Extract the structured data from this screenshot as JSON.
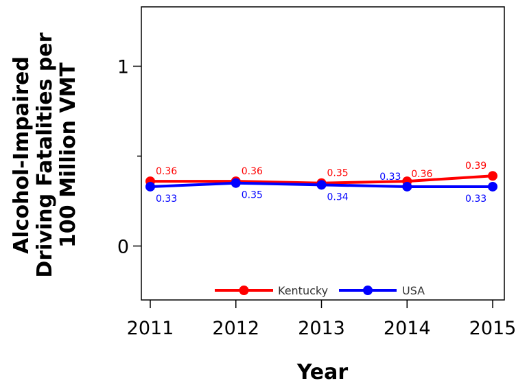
{
  "chart_data": {
    "type": "line",
    "xlabel": "Year",
    "ylabel_lines": [
      "Alcohol-Impaired",
      "Driving Fatalities per",
      "100 Million VMT"
    ],
    "categories": [
      "2011",
      "2012",
      "2013",
      "2014",
      "2015"
    ],
    "ylim": [
      -0.3,
      1.33
    ],
    "yticks": [
      0,
      1
    ],
    "ytick_labels": [
      "0",
      "1"
    ],
    "grid": false,
    "legend_position": "bottom-center",
    "series": [
      {
        "name": "Kentucky",
        "color": "#ff0000",
        "values": [
          0.36,
          0.36,
          0.35,
          0.36,
          0.39
        ],
        "labels": [
          "0.36",
          "0.36",
          "0.35",
          "0.36",
          "0.39"
        ]
      },
      {
        "name": "USA",
        "color": "#0000ff",
        "values": [
          0.33,
          0.35,
          0.34,
          0.33,
          0.33
        ],
        "labels": [
          "0.33",
          "0.35",
          "0.34",
          "0.33",
          "0.33"
        ]
      }
    ]
  }
}
